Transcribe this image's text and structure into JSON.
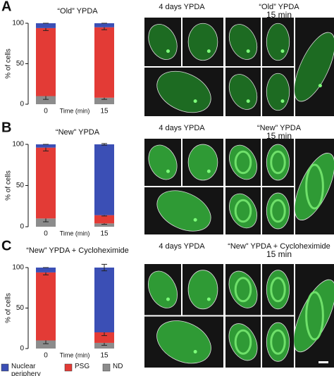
{
  "panels": [
    {
      "letter": "A",
      "image_labels": [
        "4 days YPDA",
        "“Old” YPDA",
        "15 min"
      ]
    },
    {
      "letter": "B",
      "image_labels": [
        "4 days YPDA",
        "“New” YPDA",
        "15 min"
      ]
    },
    {
      "letter": "C",
      "image_labels": [
        "4 days YPDA",
        "“New” YPDA + Cycloheximide",
        "15 min"
      ]
    }
  ],
  "chart_data": [
    {
      "type": "bar",
      "stacked": true,
      "title": "“Old” YPDA",
      "categories": [
        "0",
        "15"
      ],
      "x_label": "Time (min)",
      "y_label": "% of cells",
      "ylim": [
        0,
        100
      ],
      "yticks": [
        0,
        50,
        100
      ],
      "series": [
        {
          "name": "ND",
          "color": "#8c8c8c",
          "values": [
            10,
            8
          ],
          "errors": [
            4,
            2
          ]
        },
        {
          "name": "PSG",
          "color": "#e33b36",
          "values": [
            84,
            87
          ],
          "errors": [
            3,
            3
          ]
        },
        {
          "name": "Nuclear periphery",
          "color": "#3b4fb5",
          "values": [
            6,
            5
          ],
          "errors": [
            0,
            0
          ]
        }
      ]
    },
    {
      "type": "bar",
      "stacked": true,
      "title": "“New” YPDA",
      "categories": [
        "0",
        "15"
      ],
      "x_label": "Time (min)",
      "y_label": "% of cells",
      "ylim": [
        0,
        100
      ],
      "yticks": [
        0,
        50,
        100
      ],
      "series": [
        {
          "name": "ND",
          "color": "#8c8c8c",
          "values": [
            10,
            4
          ],
          "errors": [
            4,
            1
          ]
        },
        {
          "name": "PSG",
          "color": "#e33b36",
          "values": [
            86,
            10
          ],
          "errors": [
            4,
            1
          ]
        },
        {
          "name": "Nuclear periphery",
          "color": "#3b4fb5",
          "values": [
            4,
            86
          ],
          "errors": [
            0,
            1
          ]
        }
      ]
    },
    {
      "type": "bar",
      "stacked": true,
      "title": "“New” YPDA + Cycloheximide",
      "categories": [
        "0",
        "15"
      ],
      "x_label": "Time (min)",
      "y_label": "% of cells",
      "ylim": [
        0,
        100
      ],
      "yticks": [
        0,
        50,
        100
      ],
      "series": [
        {
          "name": "ND",
          "color": "#8c8c8c",
          "values": [
            10,
            7
          ],
          "errors": [
            4,
            3
          ]
        },
        {
          "name": "PSG",
          "color": "#e33b36",
          "values": [
            84,
            13
          ],
          "errors": [
            3,
            4
          ]
        },
        {
          "name": "Nuclear periphery",
          "color": "#3b4fb5",
          "values": [
            6,
            80
          ],
          "errors": [
            0,
            4
          ]
        }
      ]
    }
  ]
}
